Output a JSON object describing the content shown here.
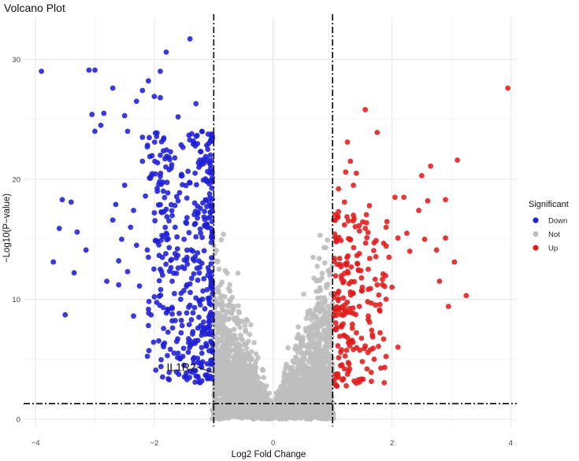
{
  "chart_data": {
    "type": "scatter",
    "title": "Volcano Plot",
    "xlabel": "Log2 Fold Change",
    "ylabel": "−Log10(P−value)",
    "xlim": [
      -4.2,
      4.1
    ],
    "ylim": [
      -0.6,
      33.5
    ],
    "xticks": [
      -4,
      -2,
      0,
      2,
      4
    ],
    "yticks": [
      0,
      10,
      20,
      30
    ],
    "xtick_labels": [
      "−4",
      "−2",
      "0",
      "2",
      "4"
    ],
    "ytick_labels": [
      "0",
      "10",
      "20",
      "30"
    ],
    "grid": true,
    "thresholds": {
      "log2fc": [
        -1,
        1
      ],
      "neg_log10_p": 1.3
    },
    "legend": {
      "title": "Significant",
      "position": "right",
      "entries": [
        {
          "name": "Down",
          "color": "#1f1fd6"
        },
        {
          "name": "Not",
          "color": "#bebebe"
        },
        {
          "name": "Up",
          "color": "#e01b1b"
        }
      ]
    },
    "annotation": {
      "label": "IL1R2",
      "x": -1.02,
      "y": 3.9
    },
    "series": [
      {
        "name": "Down",
        "color": "#1f1fd6",
        "points": [
          [
            -3.9,
            29.0
          ],
          [
            -3.1,
            29.1
          ],
          [
            -3.0,
            29.1
          ],
          [
            -2.7,
            27.6
          ],
          [
            -2.2,
            27.4
          ],
          [
            -1.9,
            29.0
          ],
          [
            -1.8,
            30.6
          ],
          [
            -1.4,
            31.7
          ],
          [
            -2.1,
            28.2
          ],
          [
            -3.05,
            25.4
          ],
          [
            -2.85,
            25.5
          ],
          [
            -2.5,
            25.3
          ],
          [
            -2.3,
            26.5
          ],
          [
            -2.0,
            26.9
          ],
          [
            -1.9,
            26.8
          ],
          [
            -2.9,
            24.5
          ],
          [
            -3.0,
            24.0
          ],
          [
            -2.45,
            24.0
          ],
          [
            -2.2,
            23.5
          ],
          [
            -1.6,
            25.2
          ],
          [
            -1.3,
            26.3
          ],
          [
            -3.55,
            18.3
          ],
          [
            -3.4,
            18.1
          ],
          [
            -3.6,
            15.9
          ],
          [
            -3.7,
            13.1
          ],
          [
            -3.3,
            15.6
          ],
          [
            -3.35,
            12.2
          ],
          [
            -3.15,
            14.1
          ],
          [
            -3.5,
            8.7
          ],
          [
            -2.8,
            11.5
          ],
          [
            -2.6,
            11.2
          ],
          [
            -2.65,
            17.9
          ],
          [
            -2.35,
            8.6
          ],
          [
            -2.1,
            7.8
          ],
          [
            -1.85,
            6.2
          ],
          [
            -1.75,
            3.9
          ],
          [
            -1.4,
            4.0
          ],
          [
            -1.3,
            3.6
          ],
          [
            -1.5,
            4.5
          ],
          [
            -1.1,
            3.5
          ],
          [
            -1.2,
            3.2
          ],
          [
            -1.05,
            4.9
          ],
          [
            -1.6,
            5.5
          ],
          [
            -1.45,
            3.3
          ],
          [
            -2.2,
            21.5
          ],
          [
            -2.05,
            20.3
          ],
          [
            -1.95,
            19.0
          ],
          [
            -1.8,
            17.5
          ],
          [
            -1.65,
            16.0
          ],
          [
            -1.5,
            15.0
          ],
          [
            -1.35,
            14.0
          ],
          [
            -1.2,
            13.0
          ],
          [
            -1.1,
            12.0
          ],
          [
            -2.4,
            16.0
          ],
          [
            -2.3,
            14.5
          ],
          [
            -2.1,
            13.5
          ],
          [
            -1.9,
            12.5
          ],
          [
            -1.7,
            11.5
          ],
          [
            -1.55,
            10.5
          ],
          [
            -1.4,
            9.5
          ],
          [
            -1.25,
            8.5
          ],
          [
            -1.15,
            7.5
          ],
          [
            -1.05,
            6.5
          ],
          [
            -2.5,
            19.5
          ],
          [
            -2.0,
            17.2
          ],
          [
            -1.75,
            14.3
          ],
          [
            -1.6,
            12.6
          ],
          [
            -1.45,
            11.2
          ],
          [
            -1.3,
            10.1
          ],
          [
            -1.15,
            9.2
          ],
          [
            -1.08,
            8.1
          ],
          [
            -2.6,
            13.2
          ],
          [
            -2.45,
            12.3
          ],
          [
            -2.25,
            11.1
          ],
          [
            -2.0,
            10.2
          ],
          [
            -1.85,
            9.3
          ],
          [
            -1.7,
            8.2
          ],
          [
            -1.55,
            7.2
          ],
          [
            -1.35,
            6.3
          ],
          [
            -1.2,
            5.5
          ],
          [
            -1.1,
            22.5
          ],
          [
            -1.25,
            21.0
          ],
          [
            -1.4,
            19.7
          ],
          [
            -1.6,
            18.2
          ],
          [
            -1.75,
            20.8
          ],
          [
            -1.9,
            22.0
          ],
          [
            -2.15,
            18.6
          ],
          [
            -2.35,
            17.4
          ],
          [
            -1.05,
            17.8
          ],
          [
            -1.15,
            16.1
          ],
          [
            -1.3,
            15.2
          ],
          [
            -1.45,
            16.8
          ],
          [
            -1.65,
            13.8
          ],
          [
            -1.8,
            15.5
          ],
          [
            -1.95,
            14.8
          ],
          [
            -2.7,
            16.6
          ],
          [
            -2.55,
            15.0
          ]
        ]
      },
      {
        "name": "Up",
        "color": "#e01b1b",
        "points": [
          [
            3.95,
            27.6
          ],
          [
            1.55,
            25.8
          ],
          [
            1.75,
            23.9
          ],
          [
            1.25,
            23.1
          ],
          [
            1.3,
            21.5
          ],
          [
            1.4,
            20.5
          ],
          [
            2.65,
            21.1
          ],
          [
            2.5,
            20.3
          ],
          [
            3.1,
            21.6
          ],
          [
            2.9,
            18.3
          ],
          [
            2.6,
            18.2
          ],
          [
            2.45,
            17.4
          ],
          [
            2.2,
            18.5
          ],
          [
            2.05,
            18.5
          ],
          [
            2.25,
            15.5
          ],
          [
            2.55,
            15.0
          ],
          [
            2.9,
            15.1
          ],
          [
            2.75,
            14.1
          ],
          [
            2.1,
            15.1
          ],
          [
            3.05,
            13.1
          ],
          [
            2.8,
            11.5
          ],
          [
            2.95,
            9.4
          ],
          [
            3.25,
            10.3
          ],
          [
            2.1,
            6.0
          ],
          [
            1.9,
            10.0
          ],
          [
            1.75,
            11.2
          ],
          [
            1.6,
            12.5
          ],
          [
            1.45,
            13.8
          ],
          [
            1.3,
            15.0
          ],
          [
            1.2,
            16.2
          ],
          [
            1.1,
            17.3
          ],
          [
            1.05,
            9.0
          ],
          [
            1.15,
            7.8
          ],
          [
            1.25,
            6.8
          ],
          [
            1.35,
            5.8
          ],
          [
            1.5,
            4.8
          ],
          [
            1.65,
            3.9
          ],
          [
            1.4,
            3.0
          ],
          [
            1.1,
            3.5
          ],
          [
            1.2,
            4.2
          ],
          [
            1.05,
            2.9
          ],
          [
            1.8,
            7.2
          ],
          [
            1.6,
            8.3
          ],
          [
            1.45,
            9.4
          ],
          [
            1.3,
            10.6
          ],
          [
            1.15,
            11.7
          ],
          [
            1.08,
            12.9
          ],
          [
            1.95,
            13.5
          ],
          [
            1.7,
            14.7
          ],
          [
            1.55,
            15.9
          ],
          [
            1.35,
            17.0
          ],
          [
            1.2,
            18.1
          ],
          [
            1.1,
            19.2
          ],
          [
            2.0,
            11.0
          ],
          [
            1.85,
            12.1
          ],
          [
            1.5,
            11.0
          ],
          [
            1.25,
            12.3
          ],
          [
            1.12,
            13.4
          ],
          [
            1.4,
            7.2
          ],
          [
            1.55,
            6.1
          ],
          [
            1.7,
            5.0
          ],
          [
            1.3,
            8.9
          ],
          [
            1.18,
            10.1
          ],
          [
            1.06,
            14.8
          ],
          [
            1.02,
            16.6
          ],
          [
            1.9,
            16.0
          ],
          [
            1.62,
            17.8
          ],
          [
            1.35,
            19.5
          ],
          [
            1.22,
            20.6
          ],
          [
            2.3,
            14.0
          ]
        ]
      }
    ],
    "not_significant_rendering": "dense cloud of many grey points inside |log2FC| < 1 and below the p-value threshold band"
  }
}
